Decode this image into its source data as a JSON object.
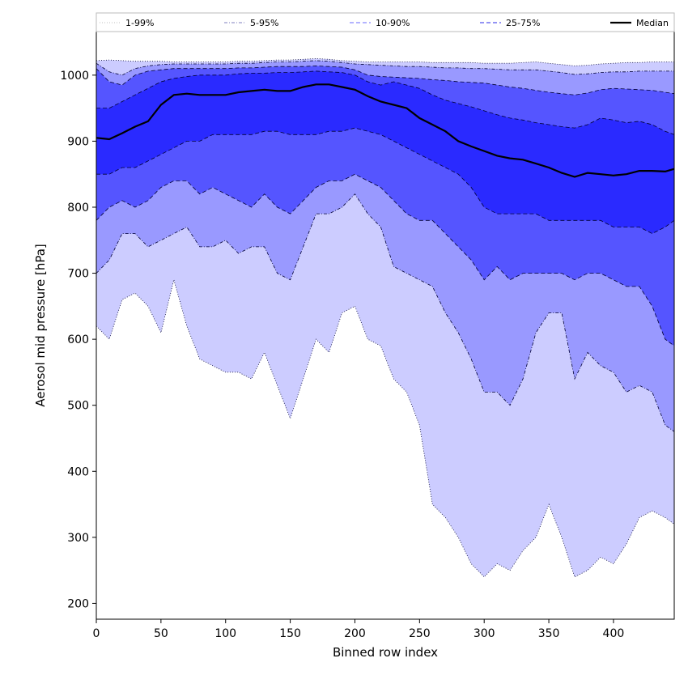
{
  "chart_data": {
    "type": "area",
    "xlabel": "Binned row index",
    "ylabel": "Aerosol mid pressure [hPa]",
    "xlim": [
      0,
      447
    ],
    "ylim": [
      176,
      1066
    ],
    "x_ticks": [
      0,
      50,
      100,
      150,
      200,
      250,
      300,
      350,
      400
    ],
    "y_ticks": [
      200,
      300,
      400,
      500,
      600,
      700,
      800,
      900,
      1000
    ],
    "legend_placement": "top, horizontal strip above plot",
    "grid": false,
    "x": [
      0,
      10,
      20,
      30,
      40,
      50,
      60,
      70,
      80,
      90,
      100,
      110,
      120,
      130,
      140,
      150,
      160,
      170,
      180,
      190,
      200,
      210,
      220,
      230,
      240,
      250,
      260,
      270,
      280,
      290,
      300,
      310,
      320,
      330,
      340,
      350,
      360,
      370,
      380,
      390,
      400,
      410,
      420,
      430,
      440,
      447
    ],
    "series": [
      {
        "name": "1-99%",
        "style": "dotted",
        "color": "#cccccc",
        "fill": "#ccccff",
        "lower": [
          620,
          600,
          660,
          670,
          650,
          610,
          690,
          620,
          570,
          560,
          550,
          550,
          540,
          580,
          530,
          480,
          540,
          600,
          580,
          640,
          650,
          600,
          590,
          540,
          520,
          470,
          350,
          330,
          300,
          260,
          240,
          260,
          250,
          280,
          300,
          350,
          300,
          240,
          250,
          270,
          260,
          290,
          330,
          340,
          330,
          320
        ],
        "upper": [
          1022,
          1023,
          1022,
          1021,
          1021,
          1021,
          1020,
          1020,
          1020,
          1020,
          1020,
          1021,
          1021,
          1022,
          1023,
          1023,
          1024,
          1025,
          1024,
          1022,
          1021,
          1020,
          1020,
          1020,
          1020,
          1020,
          1019,
          1019,
          1019,
          1019,
          1018,
          1018,
          1018,
          1019,
          1020,
          1018,
          1016,
          1014,
          1015,
          1017,
          1018,
          1019,
          1019,
          1020,
          1020,
          1020
        ]
      },
      {
        "name": "5-95%",
        "style": "dashdot",
        "color": "#9999cc",
        "fill": "#9999ff",
        "lower": [
          700,
          720,
          760,
          760,
          740,
          750,
          760,
          770,
          740,
          740,
          750,
          730,
          740,
          740,
          700,
          690,
          740,
          790,
          790,
          800,
          820,
          790,
          770,
          710,
          700,
          690,
          680,
          640,
          610,
          570,
          520,
          520,
          500,
          540,
          610,
          640,
          640,
          540,
          580,
          560,
          550,
          520,
          530,
          520,
          470,
          460
        ],
        "upper": [
          1018,
          1005,
          1000,
          1010,
          1014,
          1016,
          1017,
          1017,
          1017,
          1017,
          1017,
          1018,
          1018,
          1019,
          1020,
          1020,
          1021,
          1022,
          1021,
          1019,
          1017,
          1016,
          1015,
          1014,
          1013,
          1013,
          1012,
          1011,
          1011,
          1010,
          1010,
          1009,
          1008,
          1008,
          1008,
          1006,
          1004,
          1001,
          1002,
          1004,
          1005,
          1005,
          1006,
          1006,
          1006,
          1006
        ]
      },
      {
        "name": "10-90%",
        "style": "dashed",
        "color": "#8888ff",
        "fill": "#5555ff",
        "lower": [
          780,
          800,
          810,
          800,
          810,
          830,
          840,
          840,
          820,
          830,
          820,
          810,
          800,
          820,
          800,
          790,
          810,
          830,
          840,
          840,
          850,
          840,
          830,
          810,
          790,
          780,
          780,
          760,
          740,
          720,
          690,
          710,
          690,
          700,
          700,
          700,
          700,
          690,
          700,
          700,
          690,
          680,
          680,
          650,
          600,
          590
        ],
        "upper": [
          1010,
          990,
          985,
          1000,
          1006,
          1008,
          1010,
          1010,
          1010,
          1010,
          1010,
          1011,
          1011,
          1012,
          1013,
          1013,
          1013,
          1014,
          1013,
          1012,
          1008,
          1000,
          998,
          997,
          996,
          995,
          993,
          992,
          990,
          989,
          988,
          985,
          982,
          980,
          977,
          974,
          972,
          970,
          973,
          978,
          980,
          979,
          978,
          977,
          974,
          972
        ]
      },
      {
        "name": "25-75%",
        "style": "dashed",
        "color": "#5555ee",
        "fill": "#2a2aff",
        "lower": [
          850,
          850,
          860,
          860,
          870,
          880,
          890,
          900,
          900,
          910,
          910,
          910,
          910,
          915,
          915,
          910,
          910,
          910,
          915,
          915,
          920,
          915,
          910,
          900,
          890,
          880,
          870,
          860,
          850,
          830,
          800,
          790,
          790,
          790,
          790,
          780,
          780,
          780,
          780,
          780,
          770,
          770,
          770,
          760,
          770,
          780
        ],
        "upper": [
          950,
          950,
          960,
          970,
          980,
          990,
          995,
          998,
          1000,
          1000,
          1000,
          1002,
          1003,
          1003,
          1004,
          1004,
          1005,
          1006,
          1005,
          1004,
          1000,
          990,
          985,
          990,
          985,
          980,
          970,
          962,
          957,
          952,
          946,
          940,
          935,
          932,
          928,
          925,
          922,
          920,
          925,
          935,
          932,
          928,
          930,
          925,
          915,
          910
        ]
      },
      {
        "name": "Median",
        "style": "solid",
        "color": "#000000",
        "values": [
          905,
          903,
          912,
          922,
          930,
          955,
          970,
          972,
          970,
          970,
          970,
          974,
          976,
          978,
          976,
          976,
          982,
          986,
          986,
          982,
          978,
          968,
          960,
          955,
          950,
          935,
          925,
          915,
          900,
          892,
          885,
          878,
          874,
          872,
          866,
          860,
          852,
          846,
          852,
          850,
          848,
          850,
          855,
          855,
          854,
          858
        ]
      }
    ]
  }
}
